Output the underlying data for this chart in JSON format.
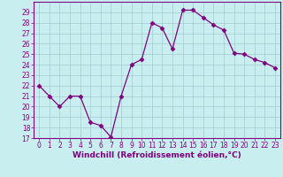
{
  "x": [
    0,
    1,
    2,
    3,
    4,
    5,
    6,
    7,
    8,
    9,
    10,
    11,
    12,
    13,
    14,
    15,
    16,
    17,
    18,
    19,
    20,
    21,
    22,
    23
  ],
  "y": [
    22,
    21,
    20,
    21,
    21,
    18.5,
    18.2,
    17.1,
    21,
    24,
    24.5,
    28,
    27.5,
    25.5,
    29.2,
    29.2,
    28.5,
    27.8,
    27.3,
    25.1,
    25.0,
    24.5,
    24.2,
    23.7
  ],
  "line_color": "#800080",
  "marker": "D",
  "marker_size": 2.5,
  "bg_color": "#c8eef0",
  "grid_color": "#a0ccd0",
  "xlabel": "Windchill (Refroidissement éolien,°C)",
  "xlabel_color": "#800080",
  "ylim": [
    17,
    30
  ],
  "xlim": [
    -0.5,
    23.5
  ],
  "yticks": [
    17,
    18,
    19,
    20,
    21,
    22,
    23,
    24,
    25,
    26,
    27,
    28,
    29
  ],
  "xticks": [
    0,
    1,
    2,
    3,
    4,
    5,
    6,
    7,
    8,
    9,
    10,
    11,
    12,
    13,
    14,
    15,
    16,
    17,
    18,
    19,
    20,
    21,
    22,
    23
  ],
  "tick_label_fontsize": 5.5,
  "xlabel_fontsize": 6.5,
  "spine_color": "#800080",
  "tick_color": "#800080"
}
